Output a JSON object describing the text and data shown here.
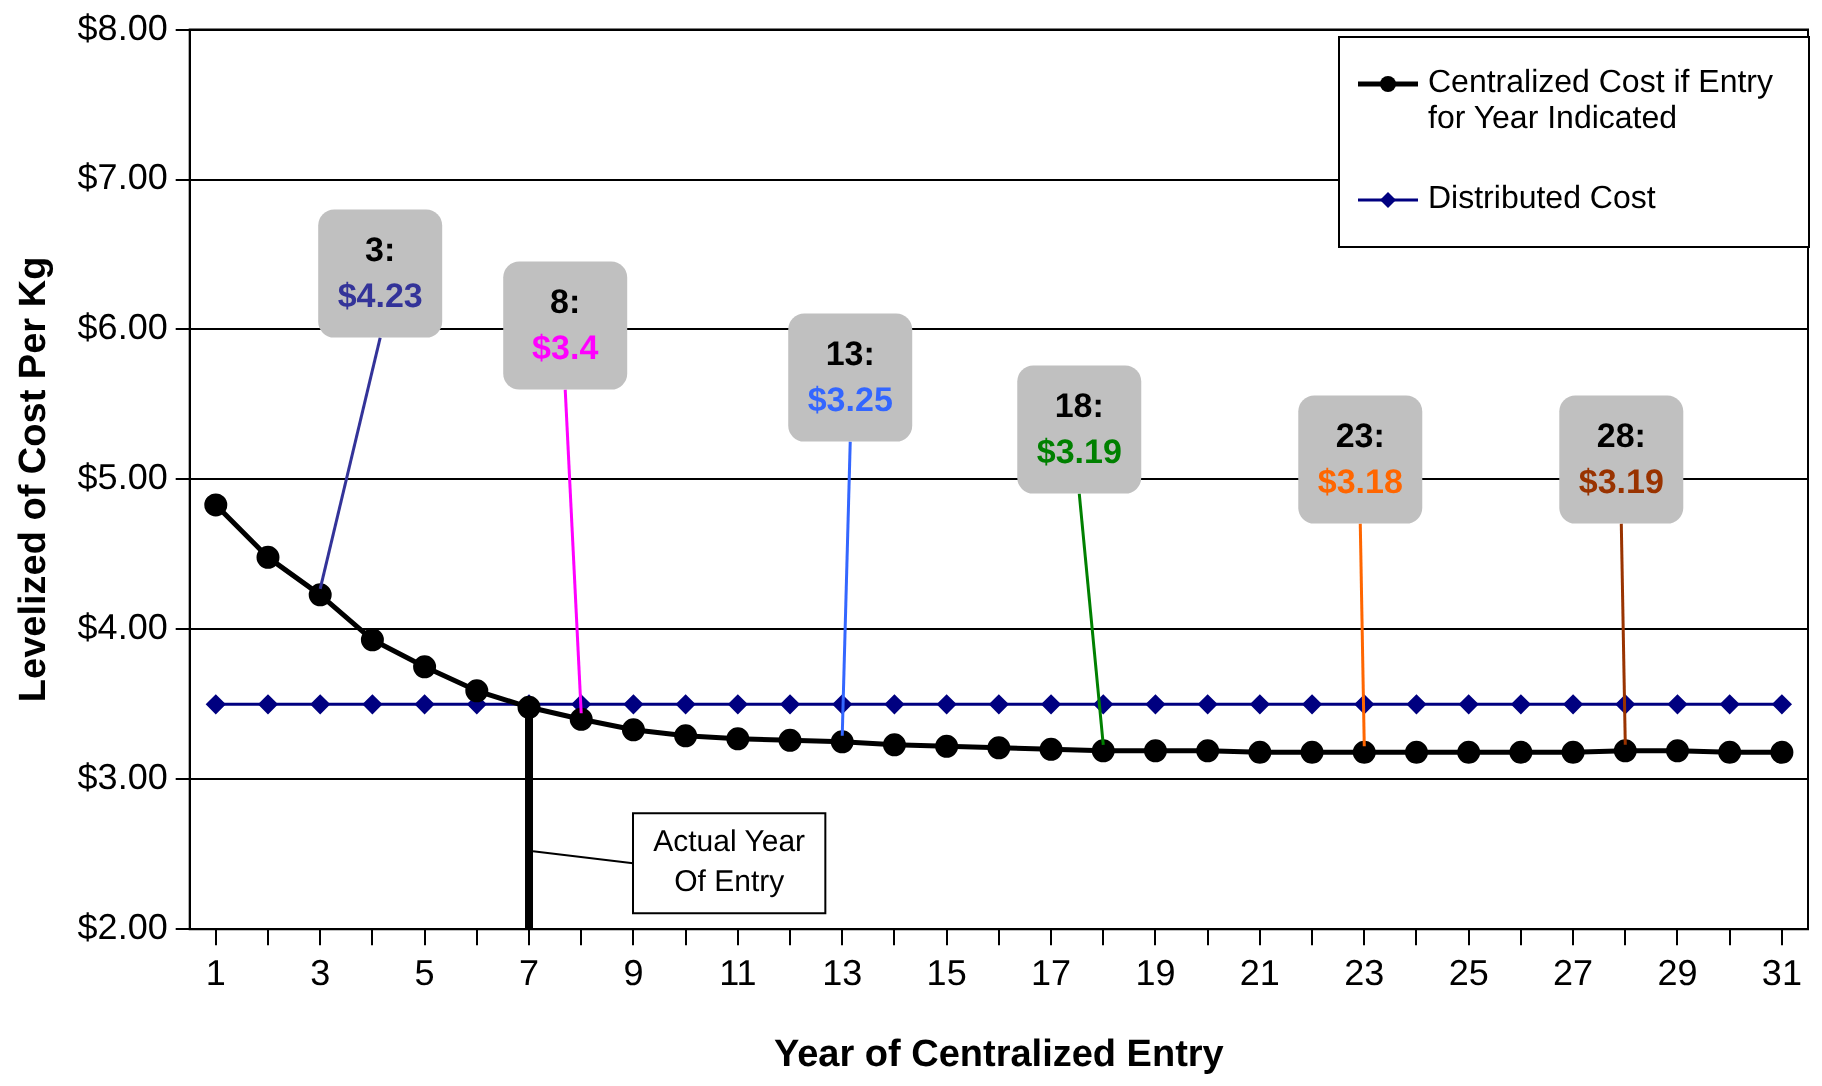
{
  "chart_data": {
    "type": "line",
    "xlabel": "Year of Centralized Entry",
    "ylabel": "Levelized of Cost Per Kg",
    "x": [
      1,
      2,
      3,
      4,
      5,
      6,
      7,
      8,
      9,
      10,
      11,
      12,
      13,
      14,
      15,
      16,
      17,
      18,
      19,
      20,
      21,
      22,
      23,
      24,
      25,
      26,
      27,
      28,
      29,
      30,
      31
    ],
    "xlim": [
      0.5,
      31.5
    ],
    "xticks": [
      1,
      {
        "value": 2,
        "label": null
      },
      3,
      {
        "value": 4,
        "label": null
      },
      5,
      {
        "value": 6,
        "label": null
      },
      7,
      {
        "value": 8,
        "label": null
      },
      9,
      {
        "value": 10,
        "label": null
      },
      11,
      {
        "value": 12,
        "label": null
      },
      13,
      {
        "value": 14,
        "label": null
      },
      15,
      {
        "value": 16,
        "label": null
      },
      17,
      {
        "value": 18,
        "label": null
      },
      19,
      {
        "value": 20,
        "label": null
      },
      21,
      {
        "value": 22,
        "label": null
      },
      23,
      {
        "value": 24,
        "label": null
      },
      25,
      {
        "value": 26,
        "label": null
      },
      27,
      {
        "value": 28,
        "label": null
      },
      29,
      {
        "value": 30,
        "label": null
      },
      31
    ],
    "series": [
      {
        "name": "Centralized Cost if Entry for Year Indicated",
        "color": "#000000",
        "marker": "circle",
        "values": [
          4.83,
          4.48,
          4.23,
          3.93,
          3.75,
          3.59,
          3.48,
          3.4,
          3.33,
          3.29,
          3.27,
          3.26,
          3.25,
          3.23,
          3.22,
          3.21,
          3.2,
          3.19,
          3.19,
          3.19,
          3.18,
          3.18,
          3.18,
          3.18,
          3.18,
          3.18,
          3.18,
          3.19,
          3.19,
          3.18,
          3.18
        ]
      },
      {
        "name": "Distributed Cost",
        "color": "#000080",
        "marker": "diamond",
        "values": [
          3.5,
          3.5,
          3.5,
          3.5,
          3.5,
          3.5,
          3.5,
          3.5,
          3.5,
          3.5,
          3.5,
          3.5,
          3.5,
          3.5,
          3.5,
          3.5,
          3.5,
          3.5,
          3.5,
          3.5,
          3.5,
          3.5,
          3.5,
          3.5,
          3.5,
          3.5,
          3.5,
          3.5,
          3.5,
          3.5,
          3.5
        ]
      }
    ],
    "ylim": [
      2,
      8
    ],
    "yticks": [
      {
        "value": 2,
        "label": "$2.00"
      },
      {
        "value": 3,
        "label": "$3.00"
      },
      {
        "value": 4,
        "label": "$4.00"
      },
      {
        "value": 5,
        "label": "$5.00"
      },
      {
        "value": 6,
        "label": "$6.00"
      },
      {
        "value": 7,
        "label": "$7.00"
      },
      {
        "value": 8,
        "label": "$8.00"
      }
    ],
    "grid": "y",
    "legend": "top right",
    "line_style": "solid",
    "ref_lines": [
      {
        "axis": "x",
        "value": 7,
        "label": "Actual Year\nOf Entry",
        "color": "#000000"
      }
    ],
    "annotations": [
      {
        "text": "3:\n$4.23",
        "x": 3,
        "y": 4.23
      },
      {
        "text": "8:\n$3.4",
        "x": 8,
        "y": 3.4
      },
      {
        "text": "13:\n$3.25",
        "x": 13,
        "y": 3.25
      },
      {
        "text": "18:\n$3.19",
        "x": 18,
        "y": 3.19
      },
      {
        "text": "23:\n$3.18",
        "x": 23,
        "y": 3.18
      },
      {
        "text": "28:\n$3.19",
        "x": 28,
        "y": 3.19
      }
    ]
  }
}
